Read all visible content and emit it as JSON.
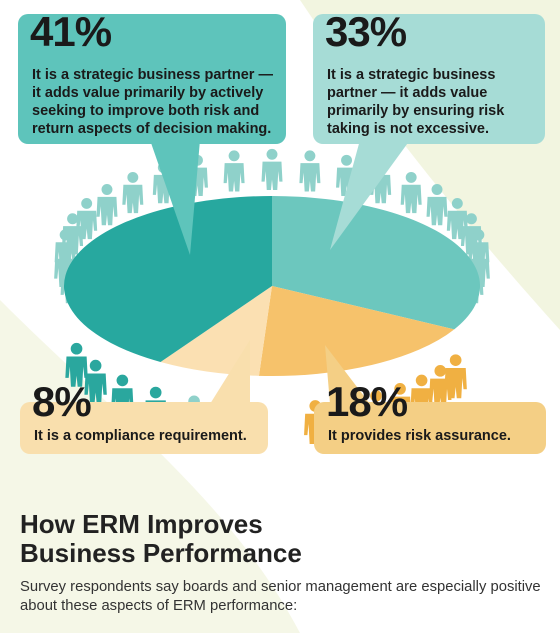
{
  "chart_data": {
    "type": "pie",
    "categories": [
      "It is a strategic business partner — it adds value primarily by actively seeking to improve both risk and return aspects of decision making.",
      "It is a strategic business partner — it adds value primarily by ensuring risk taking is not excessive.",
      "It provides risk assurance.",
      "It is a compliance requirement."
    ],
    "values": [
      41,
      33,
      18,
      8
    ],
    "labels": [
      "41%",
      "33%",
      "18%",
      "8%"
    ],
    "colors": [
      "#27a89f",
      "#6cc7be",
      "#f6c26b",
      "#fbe0b2"
    ]
  },
  "callouts": {
    "c41": {
      "pct": "41%",
      "text": "It is a strategic business partner — it adds value primarily by actively seeking to improve both risk and return aspects of decision making."
    },
    "c33": {
      "pct": "33%",
      "text": "It is a strategic business partner — it adds value primarily by ensuring risk taking is not excessive."
    },
    "c8": {
      "pct": "8%",
      "text": "It is a compliance requirement."
    },
    "c18": {
      "pct": "18%",
      "text": "It provides risk assurance."
    }
  },
  "heading": {
    "line1": "How ERM Improves",
    "line2": "Business Performance"
  },
  "subtitle": "Survey respondents say boards and senior management are especially positive about these aspects of ERM performance:",
  "colors": {
    "swoosh": "#eef2d8",
    "figure_teal_dark": "#2aa79e",
    "figure_teal_light": "#8fd1ca",
    "figure_orange": "#f0b042"
  },
  "icons": {
    "person": "person-icon"
  }
}
